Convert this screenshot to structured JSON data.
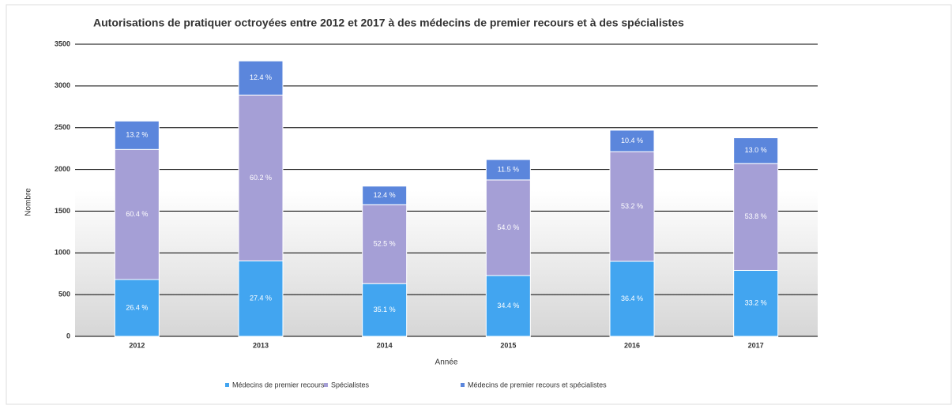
{
  "chart_data": {
    "type": "stacked_bar",
    "title": "Autorisations de pratiquer octroyées entre 2012 et 2017 à des médecins de premier recours et à des spécialistes",
    "x_label": "Année",
    "y_label": "Nombre",
    "categories": [
      "2012",
      "2013",
      "2014",
      "2015",
      "2016",
      "2017"
    ],
    "ylim": [
      0,
      3500
    ],
    "yticks": [
      0,
      500,
      1000,
      1500,
      2000,
      2500,
      3000,
      3500
    ],
    "grid": true,
    "legend": "bottom",
    "series": [
      {
        "name": "Médecins de premier recours",
        "color": "#42a5f0",
        "values": [
          681,
          904,
          632,
          729,
          899,
          790
        ],
        "shares": [
          26.4,
          27.4,
          35.1,
          34.4,
          36.4,
          33.2
        ],
        "share_labels": [
          "26.4 %",
          "27.4 %",
          "35.1 %",
          "34.4 %",
          "36.4 %",
          "33.2 %"
        ]
      },
      {
        "name": "Spécialistes",
        "color": "#a59fd6",
        "values": [
          1558,
          1987,
          945,
          1145,
          1314,
          1280
        ],
        "shares": [
          60.4,
          60.2,
          52.5,
          54.0,
          53.2,
          53.8
        ],
        "share_labels": [
          "60.4 %",
          "60.2 %",
          "52.5 %",
          "54.0 %",
          "53.2 %",
          "53.8 %"
        ]
      },
      {
        "name": "Médecins de premier recours et spécialistes",
        "color": "#5b86dc",
        "values": [
          341,
          409,
          223,
          244,
          257,
          309
        ],
        "shares": [
          13.2,
          12.4,
          12.4,
          11.5,
          10.4,
          13.0
        ],
        "share_labels": [
          "13.2 %",
          "12.4 %",
          "12.4 %",
          "11.5 %",
          "10.4 %",
          "13.0 %"
        ]
      }
    ]
  }
}
